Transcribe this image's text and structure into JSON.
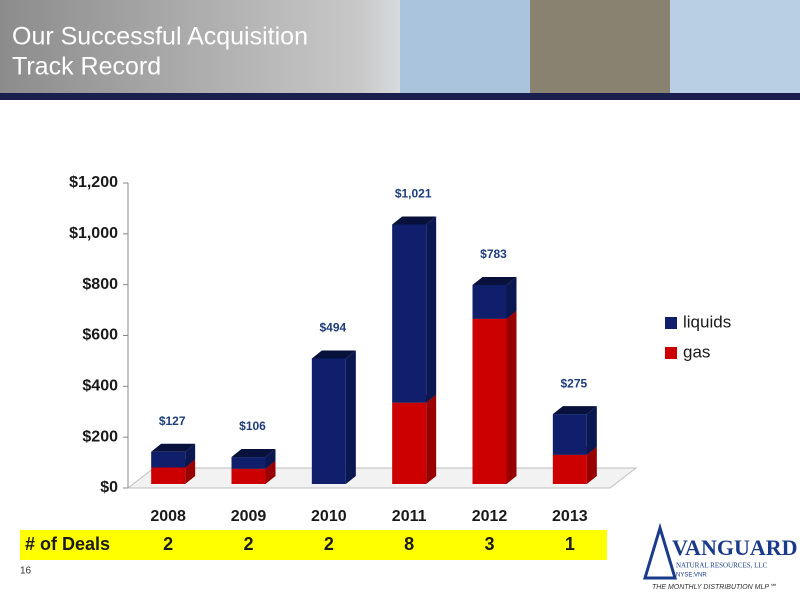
{
  "title_lines": [
    "Our Successful Acquisition",
    "Track Record"
  ],
  "page_number": "16",
  "logo": {
    "name": "VANGUARD",
    "subtitle": "NATURAL RESOURCES, LLC",
    "ticker": "NYSE:VNR",
    "tagline": "THE MONTHLY DISTRIBUTION MLP℠"
  },
  "chart_data": {
    "type": "stacked_bar_3d",
    "categories": [
      "2008",
      "2009",
      "2010",
      "2011",
      "2012",
      "2013"
    ],
    "series": [
      {
        "name": "liquids",
        "color": "#0f1f6b",
        "values": [
          62,
          46,
          494,
          701,
          133,
          160
        ]
      },
      {
        "name": "gas",
        "color": "#cc0000",
        "values": [
          65,
          60,
          0,
          320,
          650,
          115
        ]
      }
    ],
    "totals": [
      127,
      106,
      494,
      1021,
      783,
      275
    ],
    "total_labels": [
      "$127",
      "$106",
      "$494",
      "$1,021",
      "$783",
      "$275"
    ],
    "ylim": [
      0,
      1200
    ],
    "yticks": [
      {
        "value": 0,
        "label": "$0"
      },
      {
        "value": 200,
        "label": "$200"
      },
      {
        "value": 400,
        "label": "$400"
      },
      {
        "value": 600,
        "label": "$600"
      },
      {
        "value": 800,
        "label": "$800"
      },
      {
        "value": 1000,
        "label": "$1,000"
      },
      {
        "value": 1200,
        "label": "$1,200"
      }
    ],
    "grid": false,
    "legend": "right",
    "deals_label": "# of Deals",
    "deals": [
      2,
      2,
      2,
      8,
      3,
      1
    ]
  }
}
